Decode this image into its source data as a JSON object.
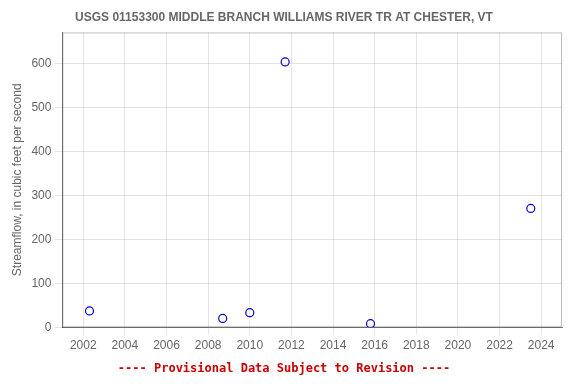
{
  "chart_data": {
    "type": "scatter",
    "title": "USGS 01153300 MIDDLE BRANCH WILLIAMS RIVER TR AT CHESTER, VT",
    "ylabel": "Streamflow, in cubic feet per second",
    "annotations": [
      {
        "text": "---- Provisional Data Subject to Revision ----",
        "color": "#cc0000"
      }
    ],
    "x": [
      2002.3,
      2008.7,
      2010.0,
      2011.7,
      2015.8,
      2023.5
    ],
    "values": [
      37,
      20,
      33,
      603,
      8,
      270
    ],
    "color": "#0000cc",
    "marker": "circle",
    "xlim": [
      2001,
      2025
    ],
    "xticks": [
      2002,
      2004,
      2006,
      2008,
      2010,
      2012,
      2014,
      2016,
      2018,
      2020,
      2022,
      2024
    ],
    "ylim": [
      0,
      670
    ],
    "yticks": [
      0,
      100,
      200,
      300,
      400,
      500,
      600
    ],
    "grid": true
  }
}
